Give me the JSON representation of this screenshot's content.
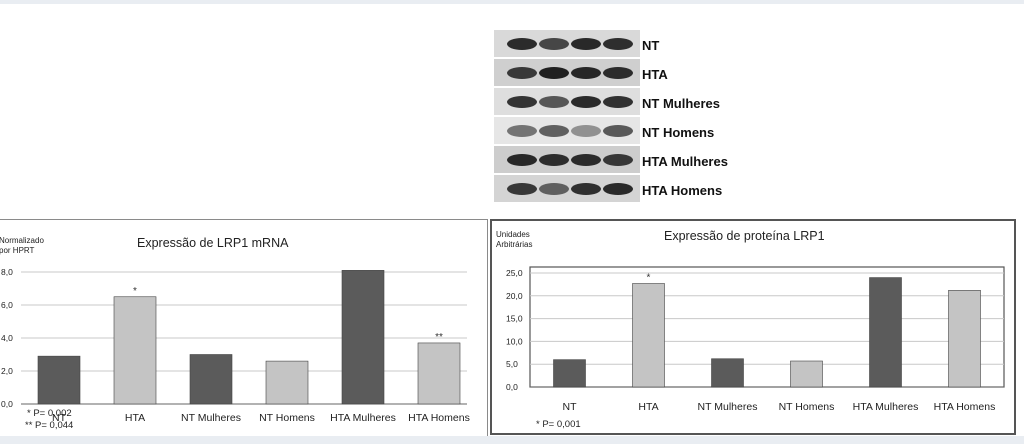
{
  "blot": {
    "labels": [
      "NT",
      "HTA",
      "NT Mulheres",
      "NT Homens",
      "HTA Mulheres",
      "HTA Homens"
    ]
  },
  "chart_data": [
    {
      "type": "bar",
      "title": "Expressão de LRP1 mRNA",
      "ylabel_line1": "Normalizado",
      "ylabel_line2": "por HPRT",
      "categories": [
        "NT",
        "HTA",
        "NT Mulheres",
        "NT Homens",
        "HTA Mulheres",
        "HTA Homens"
      ],
      "values": [
        2.9,
        6.5,
        3.0,
        2.6,
        8.1,
        3.7
      ],
      "colors": [
        "#5b5b5b",
        "#c4c4c4",
        "#5b5b5b",
        "#c4c4c4",
        "#5b5b5b",
        "#c4c4c4"
      ],
      "annotations": [
        "",
        "*",
        "",
        "",
        "",
        "**"
      ],
      "yticks": [
        "0,0",
        "2,0",
        "4,0",
        "6,0",
        "8,0"
      ],
      "ylim": [
        0,
        8.0
      ],
      "grid": true,
      "notes": [
        "* P= 0,002",
        "** P= 0,044"
      ]
    },
    {
      "type": "bar",
      "title": "Expressão de proteína LRP1",
      "ylabel_line1": "Unidades",
      "ylabel_line2": "Arbitrárias",
      "categories": [
        "NT",
        "HTA",
        "NT Mulheres",
        "NT Homens",
        "HTA Mulheres",
        "HTA Homens"
      ],
      "values": [
        6.0,
        22.7,
        6.2,
        5.7,
        24.0,
        21.2
      ],
      "colors": [
        "#5b5b5b",
        "#c4c4c4",
        "#5b5b5b",
        "#c4c4c4",
        "#5b5b5b",
        "#c4c4c4"
      ],
      "annotations": [
        "",
        "*",
        "",
        "",
        "",
        ""
      ],
      "yticks": [
        "0,0",
        "5,0",
        "10,0",
        "15,0",
        "20,0",
        "25,0"
      ],
      "ylim": [
        0,
        25.0
      ],
      "grid": true,
      "notes": [
        "* P= 0,001"
      ]
    }
  ]
}
